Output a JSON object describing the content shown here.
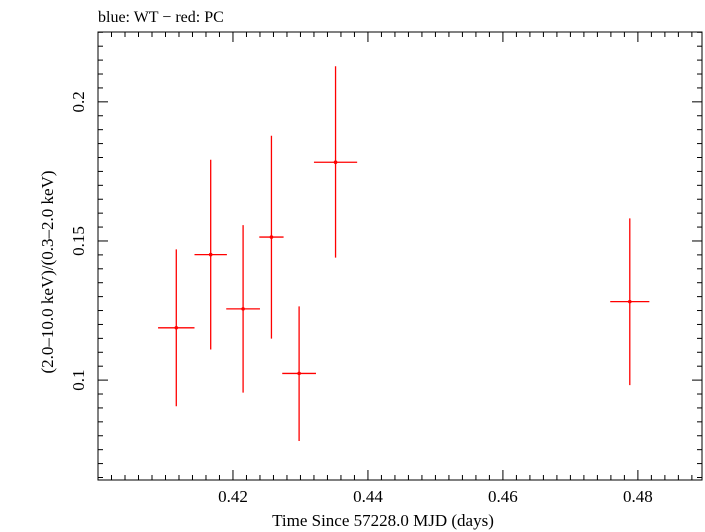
{
  "chart_data": {
    "type": "scatter",
    "title": "blue: WT − red: PC",
    "xlabel": "Time Since 57228.0 MJD (days)",
    "ylabel": "(2.0–10.0 keV)/(0.3–2.0 keV)",
    "xlim": [
      0.4,
      0.4895
    ],
    "ylim": [
      0.0641,
      0.2251
    ],
    "x_ticks": [
      {
        "value": 0.42,
        "label": "0.42"
      },
      {
        "value": 0.44,
        "label": "0.44"
      },
      {
        "value": 0.46,
        "label": "0.46"
      },
      {
        "value": 0.48,
        "label": "0.48"
      }
    ],
    "y_ticks": [
      {
        "value": 0.1,
        "label": "0.1"
      },
      {
        "value": 0.15,
        "label": "0.15"
      },
      {
        "value": 0.2,
        "label": "0.2"
      }
    ],
    "grid": false,
    "series": [
      {
        "color": "#ff0000",
        "points": [
          {
            "x": 0.4116,
            "y": 0.1188,
            "xerr": 0.0027,
            "ylo": 0.0906,
            "yhi": 0.147
          },
          {
            "x": 0.4167,
            "y": 0.1451,
            "xerr": 0.0024,
            "ylo": 0.111,
            "yhi": 0.1792
          },
          {
            "x": 0.4215,
            "y": 0.1256,
            "xerr": 0.0025,
            "ylo": 0.0955,
            "yhi": 0.1557
          },
          {
            "x": 0.4257,
            "y": 0.1514,
            "xerr": 0.0018,
            "ylo": 0.1149,
            "yhi": 0.1878
          },
          {
            "x": 0.4298,
            "y": 0.1024,
            "xerr": 0.0025,
            "ylo": 0.0781,
            "yhi": 0.1265
          },
          {
            "x": 0.4352,
            "y": 0.1783,
            "xerr": 0.0032,
            "ylo": 0.144,
            "yhi": 0.2128
          },
          {
            "x": 0.4788,
            "y": 0.1282,
            "xerr": 0.0029,
            "ylo": 0.0982,
            "yhi": 0.1581
          }
        ]
      }
    ]
  }
}
